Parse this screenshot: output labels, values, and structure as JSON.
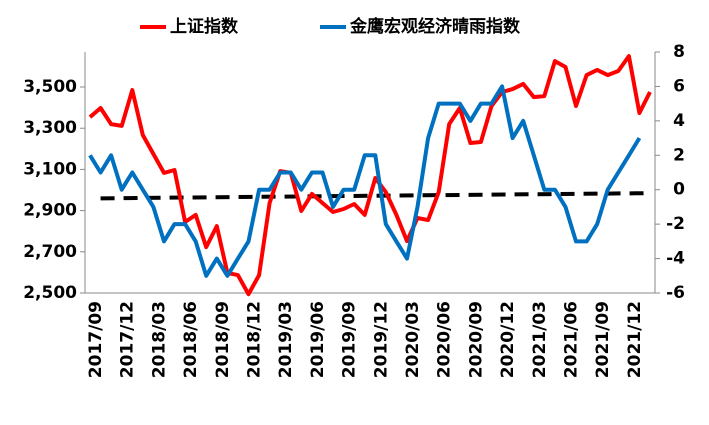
{
  "chart_data": {
    "type": "line",
    "categories": [
      "2017/09",
      null,
      null,
      "2017/12",
      null,
      null,
      "2018/03",
      null,
      null,
      "2018/06",
      null,
      null,
      "2018/09",
      null,
      null,
      "2018/12",
      null,
      null,
      "2019/03",
      null,
      null,
      "2019/06",
      null,
      null,
      "2019/09",
      null,
      null,
      "2019/12",
      null,
      null,
      "2020/03",
      null,
      null,
      "2020/06",
      null,
      null,
      "2020/09",
      null,
      null,
      "2020/12",
      null,
      null,
      "2021/03",
      null,
      null,
      "2021/06",
      null,
      null,
      "2021/09",
      null,
      null,
      "2021/12",
      null,
      null
    ],
    "series": [
      {
        "name": "上证指数",
        "color": "#ff0000",
        "values": [
          3354,
          3398,
          3320,
          3311,
          3485,
          3267,
          3175,
          3083,
          3097,
          2845,
          2879,
          2723,
          2825,
          2597,
          2587,
          2494,
          2587,
          2937,
          3092,
          3083,
          2898,
          2981,
          2937,
          2893,
          2908,
          2932,
          2879,
          3058,
          2990,
          2879,
          2752,
          2864,
          2854,
          2990,
          3320,
          3398,
          3228,
          3233,
          3408,
          3476,
          3490,
          3515,
          3451,
          3456,
          3626,
          3597,
          3408,
          3558,
          3583,
          3558,
          3578,
          3650,
          3374,
          3476
        ]
      },
      {
        "name": "金鹰宏观经济晴雨指数",
        "color": "#0070c0",
        "axis": "y2",
        "values": [
          2,
          1,
          2,
          0,
          1,
          0,
          -1,
          -3,
          -2,
          -2,
          -3,
          -5,
          -4,
          -5,
          -4,
          -3,
          0,
          0,
          1,
          1,
          0,
          1,
          1,
          -1,
          0,
          0,
          2,
          2,
          -2,
          -3,
          -4,
          -1,
          3,
          5,
          5,
          5,
          4,
          5,
          5,
          6,
          3,
          4,
          2,
          0,
          0,
          -1,
          -3,
          -3,
          -2,
          0,
          1,
          2,
          3,
          null
        ]
      }
    ],
    "reference_line": {
      "axis": "y2",
      "color": "#000000",
      "start": [
        1,
        -0.5
      ],
      "end": [
        53,
        -0.2
      ]
    },
    "ylim": [
      2500,
      3670
    ],
    "yticks": [
      {
        "value": 2500,
        "label": "2,500"
      },
      {
        "value": 2700,
        "label": "2,700"
      },
      {
        "value": 2900,
        "label": "2,900"
      },
      {
        "value": 3100,
        "label": "3,100"
      },
      {
        "value": 3300,
        "label": "3,300"
      },
      {
        "value": 3500,
        "label": "3,500"
      }
    ],
    "y2lim": [
      -6,
      8
    ],
    "y2ticks": [
      -6,
      -4,
      -2,
      0,
      2,
      4,
      6,
      8
    ],
    "grid": false,
    "legend": "top"
  }
}
